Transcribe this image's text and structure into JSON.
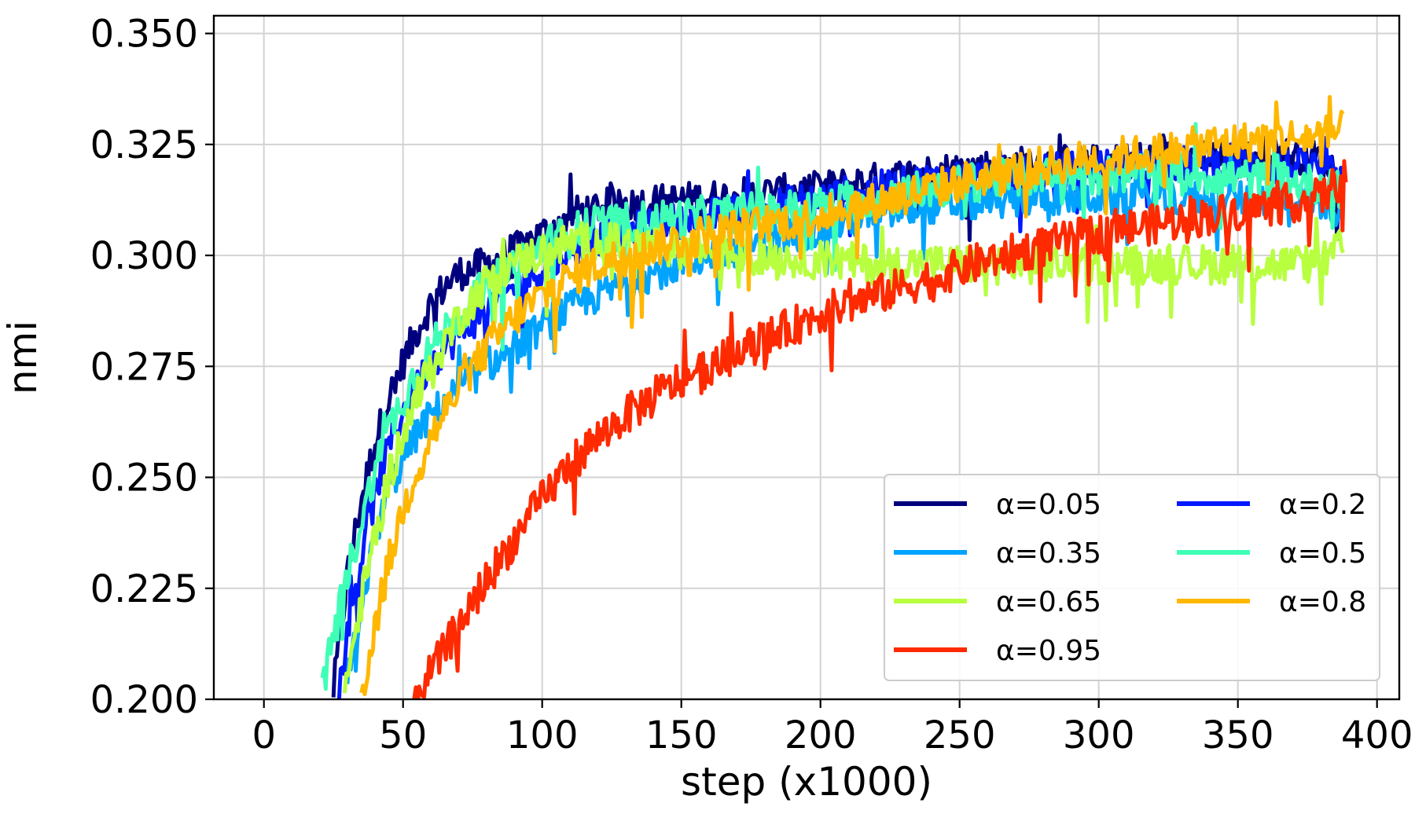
{
  "chart_data": {
    "type": "line",
    "title": "",
    "xlabel": "step (x1000)",
    "ylabel": "nmi",
    "xlim": [
      -18,
      408
    ],
    "ylim": [
      0.2,
      0.354
    ],
    "xticks": [
      "0",
      "50",
      "100",
      "150",
      "200",
      "250",
      "300",
      "350",
      "400"
    ],
    "xtick_values": [
      0,
      50,
      100,
      150,
      200,
      250,
      300,
      350,
      400
    ],
    "yticks": [
      "0.200",
      "0.225",
      "0.250",
      "0.275",
      "0.300",
      "0.325",
      "0.350"
    ],
    "ytick_values": [
      0.2,
      0.225,
      0.25,
      0.275,
      0.3,
      0.325,
      0.35
    ],
    "grid": true,
    "legend_position": "lower-right",
    "series": [
      {
        "name": "α=0.05",
        "color": "#00007f",
        "x": [
          25,
          30,
          35,
          40,
          45,
          50,
          55,
          60,
          65,
          70,
          80,
          90,
          100,
          110,
          120,
          140,
          160,
          180,
          200,
          220,
          240,
          260,
          280,
          300,
          320,
          340,
          360,
          380,
          388
        ],
        "y": [
          0.202,
          0.228,
          0.245,
          0.258,
          0.268,
          0.276,
          0.283,
          0.289,
          0.293,
          0.296,
          0.298,
          0.301,
          0.305,
          0.309,
          0.311,
          0.312,
          0.313,
          0.314,
          0.315,
          0.317,
          0.319,
          0.32,
          0.321,
          0.321,
          0.322,
          0.322,
          0.323,
          0.322,
          0.318
        ],
        "noise": 0.004
      },
      {
        "name": "α=0.2",
        "color": "#0019ff",
        "x": [
          27,
          30,
          35,
          40,
          45,
          50,
          55,
          60,
          70,
          80,
          90,
          100,
          110,
          120,
          140,
          160,
          180,
          200,
          220,
          240,
          260,
          280,
          300,
          320,
          340,
          360,
          380,
          388
        ],
        "y": [
          0.202,
          0.215,
          0.232,
          0.246,
          0.257,
          0.265,
          0.271,
          0.276,
          0.282,
          0.288,
          0.293,
          0.297,
          0.301,
          0.304,
          0.307,
          0.309,
          0.311,
          0.313,
          0.315,
          0.317,
          0.318,
          0.319,
          0.32,
          0.32,
          0.321,
          0.32,
          0.32,
          0.316
        ],
        "noise": 0.004
      },
      {
        "name": "α=0.35",
        "color": "#00a4ff",
        "x": [
          30,
          35,
          40,
          45,
          50,
          55,
          60,
          70,
          80,
          90,
          100,
          110,
          120,
          140,
          160,
          180,
          200,
          220,
          240,
          260,
          280,
          300,
          320,
          340,
          360,
          380,
          388
        ],
        "y": [
          0.203,
          0.222,
          0.236,
          0.247,
          0.254,
          0.26,
          0.264,
          0.27,
          0.275,
          0.279,
          0.284,
          0.288,
          0.291,
          0.296,
          0.3,
          0.303,
          0.306,
          0.309,
          0.311,
          0.312,
          0.313,
          0.313,
          0.313,
          0.313,
          0.313,
          0.312,
          0.31
        ],
        "noise": 0.004
      },
      {
        "name": "α=0.5",
        "color": "#3fffb7",
        "x": [
          21,
          25,
          30,
          35,
          40,
          45,
          50,
          55,
          60,
          70,
          80,
          90,
          100,
          110,
          120,
          140,
          160,
          180,
          200,
          220,
          240,
          260,
          280,
          300,
          320,
          340,
          360,
          380,
          388
        ],
        "y": [
          0.201,
          0.215,
          0.228,
          0.24,
          0.252,
          0.261,
          0.268,
          0.274,
          0.279,
          0.287,
          0.293,
          0.298,
          0.302,
          0.305,
          0.307,
          0.308,
          0.309,
          0.31,
          0.311,
          0.313,
          0.315,
          0.317,
          0.318,
          0.318,
          0.319,
          0.318,
          0.317,
          0.316,
          0.314
        ],
        "noise": 0.0045
      },
      {
        "name": "α=0.65",
        "color": "#b7ff3f",
        "x": [
          29,
          35,
          40,
          45,
          50,
          55,
          60,
          70,
          80,
          90,
          100,
          110,
          120,
          140,
          160,
          180,
          200,
          220,
          240,
          260,
          280,
          300,
          320,
          340,
          360,
          380,
          388
        ],
        "y": [
          0.202,
          0.222,
          0.237,
          0.25,
          0.26,
          0.268,
          0.275,
          0.286,
          0.294,
          0.298,
          0.301,
          0.303,
          0.303,
          0.302,
          0.301,
          0.3,
          0.299,
          0.298,
          0.298,
          0.298,
          0.298,
          0.298,
          0.298,
          0.298,
          0.298,
          0.298,
          0.302
        ],
        "noise": 0.0045
      },
      {
        "name": "α=0.8",
        "color": "#ffb700",
        "x": [
          35,
          40,
          45,
          50,
          55,
          60,
          70,
          80,
          90,
          100,
          110,
          120,
          140,
          160,
          180,
          200,
          220,
          240,
          260,
          280,
          300,
          320,
          340,
          360,
          380,
          388
        ],
        "y": [
          0.201,
          0.217,
          0.231,
          0.243,
          0.252,
          0.259,
          0.27,
          0.279,
          0.286,
          0.291,
          0.295,
          0.298,
          0.302,
          0.305,
          0.307,
          0.309,
          0.312,
          0.315,
          0.318,
          0.32,
          0.322,
          0.323,
          0.325,
          0.326,
          0.327,
          0.328
        ],
        "noise": 0.0045
      },
      {
        "name": "α=0.95",
        "color": "#ff2a00",
        "x": [
          54,
          60,
          65,
          70,
          75,
          80,
          90,
          100,
          110,
          120,
          130,
          140,
          150,
          160,
          170,
          180,
          190,
          200,
          220,
          240,
          260,
          280,
          300,
          320,
          340,
          360,
          380,
          389
        ],
        "y": [
          0.201,
          0.206,
          0.211,
          0.217,
          0.222,
          0.227,
          0.236,
          0.245,
          0.253,
          0.259,
          0.264,
          0.268,
          0.272,
          0.275,
          0.278,
          0.281,
          0.284,
          0.287,
          0.291,
          0.295,
          0.299,
          0.302,
          0.305,
          0.307,
          0.309,
          0.311,
          0.313,
          0.318
        ],
        "noise": 0.0045
      }
    ]
  }
}
